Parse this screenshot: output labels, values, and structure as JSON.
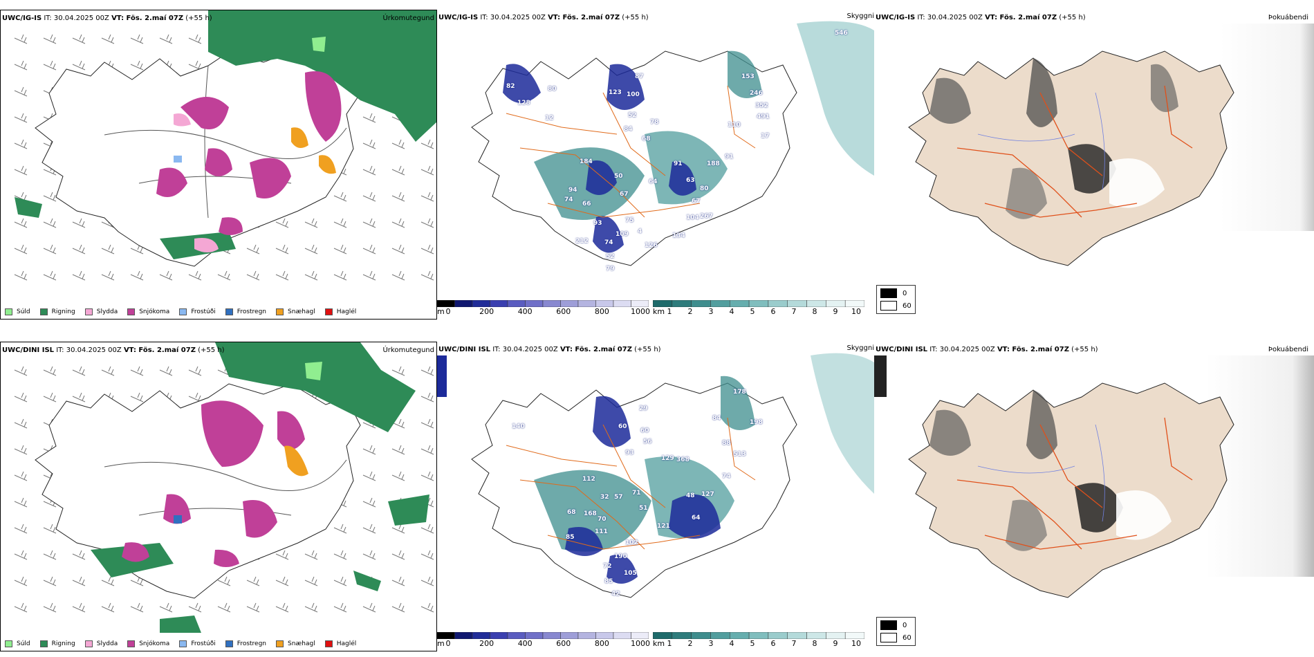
{
  "rows": [
    {
      "precip": {
        "model": "UWC/IG-IS",
        "it": "IT: 30.04.2025 00Z",
        "vt": "VT: Fös. 2.maí 07Z",
        "lead": "(+55 h)",
        "field": "Úrkomutegund"
      },
      "vis": {
        "model": "UWC/IG-IS",
        "it": "IT: 30.04.2025 00Z",
        "vt": "VT: Fös. 2.maí 07Z",
        "lead": "(+55 h)",
        "field": "Skyggni",
        "labels": [
          "546",
          "82",
          "128",
          "80",
          "123",
          "100",
          "87",
          "52",
          "78",
          "68",
          "153",
          "246",
          "352",
          "491",
          "110",
          "91",
          "12",
          "84",
          "91",
          "184",
          "50",
          "64",
          "63",
          "80",
          "67",
          "94",
          "74",
          "66",
          "67",
          "188",
          "93",
          "75",
          "104",
          "267",
          "109",
          "74",
          "52",
          "79",
          "212",
          "4",
          "126",
          "134",
          "17"
        ]
      },
      "fog": {
        "model": "UWC/IG-IS",
        "it": "IT: 30.04.2025 00Z",
        "vt": "VT: Fös. 2.maí 07Z",
        "lead": "(+55 h)",
        "field": "Þokuábendi"
      }
    },
    {
      "precip": {
        "model": "UWC/DINI ISL",
        "it": "IT: 30.04.2025 00Z",
        "vt": "VT: Fös. 2.maí 07Z",
        "lead": "(+55 h)",
        "field": "Úrkomutegund"
      },
      "vis": {
        "model": "UWC/DINI ISL",
        "it": "IT: 30.04.2025 00Z",
        "vt": "VT: Fös. 2.maí 07Z",
        "lead": "(+55 h)",
        "field": "Skyggni",
        "labels": [
          "178",
          "29",
          "60",
          "60",
          "56",
          "93",
          "129",
          "368",
          "198",
          "84",
          "88",
          "513",
          "74",
          "140",
          "112",
          "32",
          "57",
          "71",
          "51",
          "48",
          "127",
          "68",
          "168",
          "70",
          "64",
          "85",
          "111",
          "121",
          "102",
          "190",
          "72",
          "85",
          "42",
          "105"
        ]
      },
      "fog": {
        "model": "UWC/DINI ISL",
        "it": "IT: 30.04.2025 00Z",
        "vt": "VT: Fös. 2.maí 07Z",
        "lead": "(+55 h)",
        "field": "Þokuábendi"
      }
    }
  ],
  "precip_legend": [
    {
      "label": "Súld",
      "color": "#90ee90"
    },
    {
      "label": "Rigning",
      "color": "#2e8b57"
    },
    {
      "label": "Slydda",
      "color": "#f4a7d4"
    },
    {
      "label": "Snjókoma",
      "color": "#c04098"
    },
    {
      "label": "Frostúði",
      "color": "#8ab8f0"
    },
    {
      "label": "Frostregn",
      "color": "#3070c0"
    },
    {
      "label": "Snæhagl",
      "color": "#f0a020"
    },
    {
      "label": "Haglél",
      "color": "#e01010"
    }
  ],
  "ceiling_bar": {
    "unit": "m",
    "ticks": [
      "0",
      "200",
      "400",
      "600",
      "800",
      "1000"
    ],
    "colors": [
      "#000000",
      "#101870",
      "#202c98",
      "#3a3fb0",
      "#5a5cc0",
      "#7070c8",
      "#8888d0",
      "#9e9ed8",
      "#b4b4e0",
      "#c8c8ea",
      "#dcdcf2",
      "#ececf8"
    ]
  },
  "vis_bar": {
    "unit": "km",
    "ticks": [
      "1",
      "2",
      "3",
      "4",
      "5",
      "6",
      "7",
      "8",
      "9",
      "10"
    ],
    "colors": [
      "#1e6b6b",
      "#2e7c7c",
      "#3e8d8d",
      "#529e9e",
      "#66aeae",
      "#80bebe",
      "#9acccc",
      "#b4dada",
      "#cde7e7",
      "#e4f2f2",
      "#f2f9f9"
    ]
  },
  "fog_key": [
    {
      "value": "0",
      "color": "#000000"
    },
    {
      "value": "60",
      "color": "#ffffff"
    }
  ],
  "colors": {
    "rain": "#2e8b57",
    "snow": "#c04098",
    "vis_teal": "#3e8d8d",
    "ceiling_blue": "#1c2a9a",
    "roads": "#e06a1a",
    "fog_land": "#ecdccb"
  }
}
